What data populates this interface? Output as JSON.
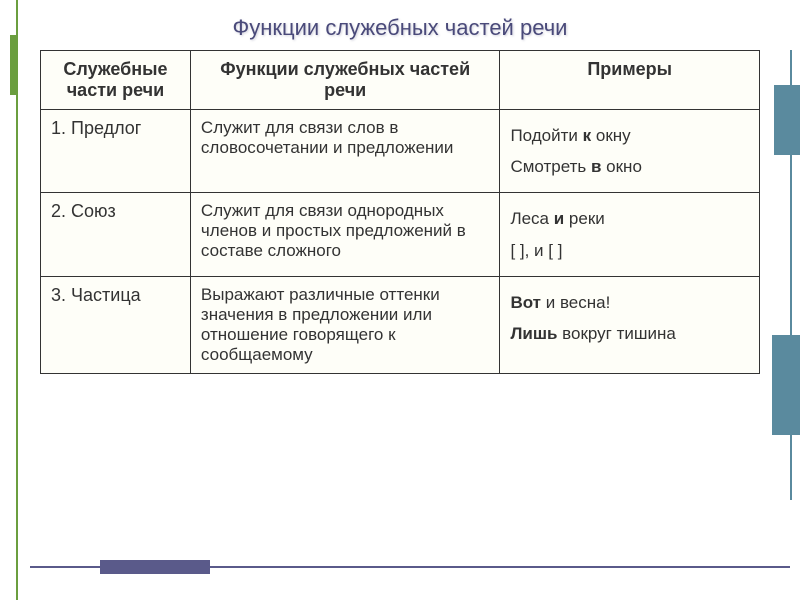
{
  "title": "Функции служебных частей речи",
  "columns": {
    "c1": "Служебные части речи",
    "c2": "Функции служебных частей речи",
    "c3": "Примеры"
  },
  "rows": {
    "r1": {
      "label": "1. Предлог",
      "func": "Служит для связи слов в словосочетании и предложении",
      "ex1_pre": "Подойти ",
      "ex1_bold": "к",
      "ex1_post": " окну",
      "ex2_pre": "Смотреть ",
      "ex2_bold": "в",
      "ex2_post": " окно"
    },
    "r2": {
      "label": "2. Союз",
      "func": "Служит для связи однородных членов  и простых предложений в составе сложного",
      "ex1_pre": "Леса ",
      "ex1_bold": "и",
      "ex1_post": " реки",
      "ex2": "[   ], и [   ]"
    },
    "r3": {
      "label": "3. Частица",
      "func": "Выражают различные оттенки значения в предложении или отношение говорящего к сообщаемому",
      "ex1_bold": "Вот",
      "ex1_post": "  и весна!",
      "ex2_bold": "Лишь",
      "ex2_post": " вокруг тишина"
    }
  }
}
